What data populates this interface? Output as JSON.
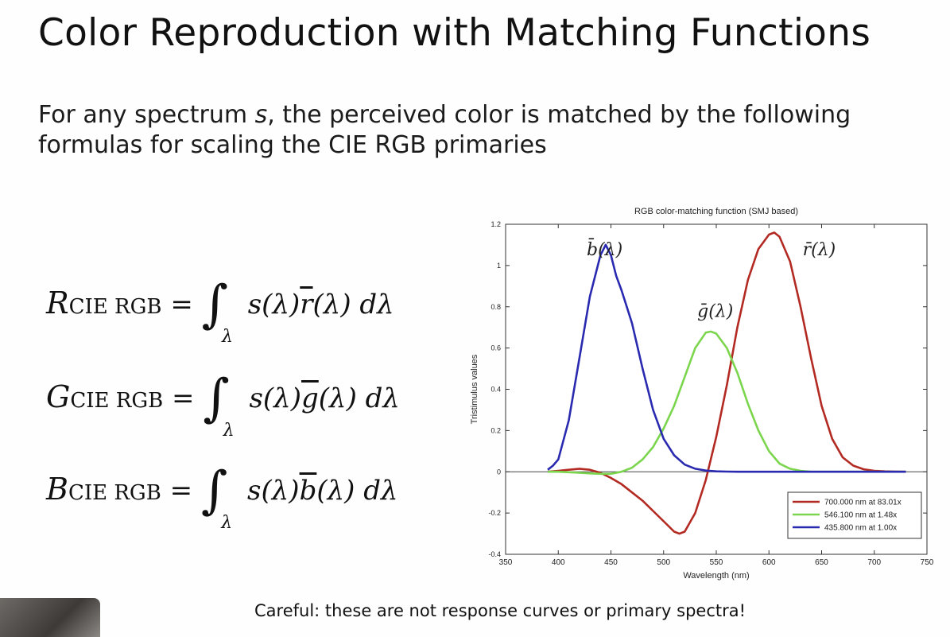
{
  "slide": {
    "title": "Color Reproduction with Matching Functions",
    "intro_a": "For any spectrum ",
    "intro_s": "s",
    "intro_b": ", the perceived color is matched by the following formulas for scaling the CIE RGB primaries",
    "caption": "Careful: these are not response curves or primary spectra!"
  },
  "equations": [
    {
      "lhs": "R",
      "sub": "CIE RGB",
      "integrand_pre": "s(λ)",
      "fn": "r",
      "integrand_post": "(λ) dλ"
    },
    {
      "lhs": "G",
      "sub": "CIE RGB",
      "integrand_pre": "s(λ)",
      "fn": "g",
      "integrand_post": "(λ) dλ"
    },
    {
      "lhs": "B",
      "sub": "CIE RGB",
      "integrand_pre": "s(λ)",
      "fn": "b",
      "integrand_post": "(λ) dλ"
    }
  ],
  "eq_symbols": {
    "equals": "=",
    "integral": "∫",
    "lambda": "λ"
  },
  "chart_data": {
    "type": "line",
    "title": "RGB color-matching function (SMJ based)",
    "xlabel": "Wavelength (nm)",
    "ylabel": "Tristimulus values",
    "xlim": [
      350,
      750
    ],
    "ylim": [
      -0.4,
      1.2
    ],
    "xticks": [
      350,
      400,
      450,
      500,
      550,
      600,
      650,
      700,
      750
    ],
    "yticks": [
      -0.4,
      -0.2,
      0,
      0.2,
      0.4,
      0.6,
      0.8,
      1,
      1.2
    ],
    "ytick_labels": [
      "-0.4",
      "-0.2",
      "0",
      "0.2",
      "0.4",
      "0.6",
      "0.8",
      "1",
      "1.2"
    ],
    "legend_position": "bottom-right",
    "curve_labels": [
      {
        "text": "b̄(λ)",
        "x": 427,
        "y": 1.05
      },
      {
        "text": "ḡ(λ)",
        "x": 532,
        "y": 0.75
      },
      {
        "text": "r̄(λ)",
        "x": 632,
        "y": 1.05
      }
    ],
    "series": [
      {
        "name": "700.000 nm at 83.01x",
        "color": "#b22a22",
        "x": [
          390,
          400,
          410,
          420,
          430,
          440,
          450,
          460,
          470,
          480,
          490,
          500,
          510,
          515,
          520,
          530,
          540,
          550,
          560,
          570,
          580,
          590,
          600,
          605,
          610,
          620,
          630,
          640,
          650,
          660,
          670,
          680,
          690,
          700,
          710,
          720,
          730
        ],
        "y": [
          0.0,
          0.005,
          0.01,
          0.015,
          0.01,
          -0.005,
          -0.03,
          -0.06,
          -0.1,
          -0.14,
          -0.19,
          -0.24,
          -0.29,
          -0.3,
          -0.29,
          -0.2,
          -0.04,
          0.17,
          0.42,
          0.7,
          0.93,
          1.08,
          1.15,
          1.16,
          1.14,
          1.02,
          0.8,
          0.55,
          0.32,
          0.16,
          0.07,
          0.03,
          0.012,
          0.005,
          0.002,
          0.001,
          0.0
        ]
      },
      {
        "name": "546.100 nm at  1.48x",
        "color": "#7bd64e",
        "x": [
          390,
          400,
          410,
          420,
          430,
          440,
          450,
          460,
          470,
          480,
          490,
          500,
          510,
          520,
          530,
          540,
          545,
          550,
          560,
          570,
          580,
          590,
          600,
          610,
          620,
          630,
          640,
          650,
          660,
          670,
          680,
          690,
          700,
          710,
          720,
          730
        ],
        "y": [
          0.0,
          0.0,
          -0.002,
          -0.005,
          -0.008,
          -0.01,
          -0.01,
          0.0,
          0.02,
          0.06,
          0.12,
          0.21,
          0.32,
          0.46,
          0.6,
          0.675,
          0.68,
          0.67,
          0.6,
          0.48,
          0.33,
          0.2,
          0.1,
          0.04,
          0.015,
          0.005,
          0.0,
          0.0,
          0.0,
          0.0,
          0.0,
          0.0,
          0.0,
          0.0,
          0.0,
          0.0
        ]
      },
      {
        "name": "435.800 nm at  1.00x",
        "color": "#2a2ab0",
        "x": [
          390,
          395,
          400,
          410,
          420,
          430,
          440,
          445,
          450,
          455,
          460,
          465,
          470,
          480,
          490,
          500,
          510,
          520,
          530,
          540,
          550,
          560,
          570,
          580,
          600,
          650,
          700,
          730
        ],
        "y": [
          0.01,
          0.03,
          0.06,
          0.25,
          0.55,
          0.85,
          1.05,
          1.1,
          1.05,
          0.95,
          0.88,
          0.8,
          0.72,
          0.5,
          0.3,
          0.16,
          0.08,
          0.035,
          0.015,
          0.006,
          0.002,
          0.001,
          0.0,
          0.0,
          0.0,
          0.0,
          0.0,
          0.0
        ]
      }
    ]
  }
}
